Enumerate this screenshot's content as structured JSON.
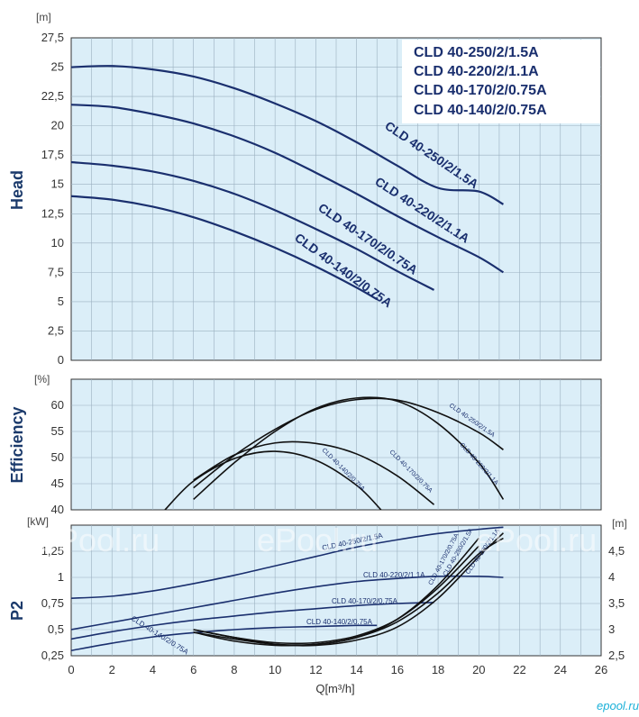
{
  "watermark": "ePool.ru",
  "logo": "epool.ru",
  "legend": [
    "CLD 40-250/2/1.5A",
    "CLD 40-220/2/1.1A",
    "CLD 40-170/2/0.75A",
    "CLD 40-140/2/0.75A"
  ],
  "colors": {
    "plot_bg": "#dbeef8",
    "grid": "#9bb0c0",
    "curve": "#1a2f6e",
    "black_curve": "#111111",
    "axis_text": "#333333",
    "title": "#1b3a6b"
  },
  "chart_data": [
    {
      "type": "line",
      "ylabel": "Head",
      "yunit": "[m]",
      "xlim": [
        0,
        26
      ],
      "ylim": [
        0,
        27.5
      ],
      "xticks": [
        "0",
        "2",
        "4",
        "6",
        "8",
        "10",
        "12",
        "14",
        "16",
        "18",
        "20",
        "22",
        "24",
        "26"
      ],
      "yticks": [
        "0",
        "2,5",
        "5",
        "7,5",
        "10",
        "12,5",
        "15",
        "17,5",
        "20",
        "22,5",
        "25",
        "27,5"
      ],
      "series": [
        {
          "name": "CLD 40-250/2/1.5A",
          "x": [
            0,
            2,
            4,
            6,
            8,
            10,
            12,
            14,
            16,
            18,
            20,
            21.2
          ],
          "y": [
            25,
            25.1,
            24.8,
            24.2,
            23.2,
            21.9,
            20.4,
            18.6,
            16.6,
            14.7,
            14.4,
            13.3
          ]
        },
        {
          "name": "CLD 40-220/2/1.1A",
          "x": [
            0,
            2,
            4,
            6,
            8,
            10,
            12,
            14,
            16,
            18,
            20,
            21.2
          ],
          "y": [
            21.8,
            21.6,
            21.0,
            20.2,
            19.1,
            17.7,
            16.0,
            14.2,
            12.3,
            10.5,
            8.8,
            7.5
          ]
        },
        {
          "name": "CLD 40-170/2/0.75A",
          "x": [
            0,
            2,
            4,
            6,
            8,
            10,
            12,
            14,
            16,
            17.8
          ],
          "y": [
            16.9,
            16.6,
            16.1,
            15.3,
            14.2,
            12.8,
            11.2,
            9.5,
            7.6,
            6.0
          ]
        },
        {
          "name": "CLD 40-140/2/0.75A",
          "x": [
            0,
            2,
            4,
            6,
            8,
            10,
            12,
            14,
            15
          ],
          "y": [
            14.0,
            13.7,
            13.1,
            12.2,
            11.0,
            9.6,
            8.0,
            6.2,
            5.2
          ]
        }
      ]
    },
    {
      "type": "line",
      "ylabel": "Efficiency",
      "yunit": "[%]",
      "xlim": [
        0,
        26
      ],
      "ylim": [
        40,
        65
      ],
      "yticks": [
        "40",
        "45",
        "50",
        "55",
        "60"
      ],
      "series": [
        {
          "name": "CLD 40-250/2/1.5A",
          "x": [
            6,
            8,
            10,
            12,
            14,
            16,
            18,
            20,
            21.2
          ],
          "y": [
            44.2,
            50.4,
            55.4,
            59.2,
            61.1,
            61.0,
            58.6,
            54.8,
            51.5
          ]
        },
        {
          "name": "CLD 40-220/2/1.1A",
          "x": [
            6,
            8,
            10,
            12,
            14,
            16,
            18,
            20,
            21.2
          ],
          "y": [
            42.0,
            49.0,
            55.0,
            59.4,
            61.4,
            60.8,
            56.5,
            49.0,
            42.0
          ]
        },
        {
          "name": "CLD 40-170/2/0.75A",
          "x": [
            6,
            8,
            10,
            12,
            14,
            16,
            17.8
          ],
          "y": [
            45.7,
            50.5,
            52.8,
            52.7,
            50.7,
            46.5,
            41.0
          ]
        },
        {
          "name": "CLD 40-140/2/0.75A",
          "x": [
            4.6,
            6,
            8,
            10,
            12,
            14,
            15.2
          ],
          "y": [
            40.0,
            45.5,
            49.8,
            51.2,
            49.5,
            44.7,
            40.0
          ]
        }
      ]
    },
    {
      "type": "line",
      "ylabel": "P2",
      "yunit": "[kW]",
      "xlim": [
        0,
        26
      ],
      "ylim": [
        0.25,
        1.5
      ],
      "yticks": [
        "0,25",
        "0,5",
        "0,75",
        "1",
        "1,25"
      ],
      "series": [
        {
          "name": "CLD 40-250/2/1.5A",
          "x": [
            0,
            2,
            4,
            6,
            8,
            10,
            12,
            14,
            16,
            18,
            20,
            21.2
          ],
          "y": [
            0.8,
            0.82,
            0.87,
            0.94,
            1.02,
            1.11,
            1.2,
            1.29,
            1.36,
            1.42,
            1.46,
            1.48
          ]
        },
        {
          "name": "CLD 40-220/2/1.1A",
          "x": [
            0,
            2,
            4,
            6,
            8,
            10,
            12,
            14,
            16,
            18,
            20,
            21.2
          ],
          "y": [
            0.5,
            0.57,
            0.64,
            0.71,
            0.78,
            0.85,
            0.91,
            0.96,
            0.99,
            1.01,
            1.01,
            1.0
          ]
        },
        {
          "name": "CLD 40-170/2/0.75A",
          "x": [
            0,
            2,
            4,
            6,
            8,
            10,
            12,
            14,
            16,
            17.8
          ],
          "y": [
            0.41,
            0.48,
            0.54,
            0.59,
            0.63,
            0.67,
            0.7,
            0.73,
            0.75,
            0.76
          ]
        },
        {
          "name": "CLD 40-140/2/0.75A",
          "x": [
            0,
            2,
            4,
            6,
            8,
            10,
            12,
            14,
            15
          ],
          "y": [
            0.3,
            0.37,
            0.43,
            0.47,
            0.5,
            0.52,
            0.53,
            0.54,
            0.54
          ]
        }
      ],
      "y2unit": "[m]",
      "y2lim": [
        2.5,
        5
      ],
      "y2ticks": [
        "2,5",
        "3",
        "3,5",
        "4",
        "4,5"
      ],
      "npsh_series": [
        {
          "name": "CLD 40-250/2/1.5A",
          "x": [
            6,
            8,
            10,
            12,
            14,
            16,
            18,
            20,
            21.2
          ],
          "y": [
            3.0,
            2.85,
            2.72,
            2.7,
            2.8,
            3.05,
            3.6,
            4.4,
            4.85
          ]
        },
        {
          "name": "CLD 40-220/2/1.1A",
          "x": [
            6,
            8,
            10,
            12,
            14,
            16,
            18,
            20,
            21.2
          ],
          "y": [
            2.95,
            2.82,
            2.72,
            2.72,
            2.85,
            3.15,
            3.7,
            4.45,
            4.75
          ]
        },
        {
          "name": "CLD 40-170/2/0.75A",
          "x": [
            6,
            8,
            10,
            12,
            14,
            16,
            18,
            20
          ],
          "y": [
            3.0,
            2.85,
            2.75,
            2.75,
            2.88,
            3.2,
            3.8,
            4.6
          ]
        },
        {
          "name": "CLD 40-140/2/0.75A",
          "x": [
            6,
            8,
            10,
            12,
            14,
            16,
            18,
            20
          ],
          "y": [
            2.95,
            2.78,
            2.7,
            2.72,
            2.85,
            3.2,
            3.85,
            4.75
          ]
        }
      ],
      "xlabel": "Q[m³/h]"
    }
  ]
}
